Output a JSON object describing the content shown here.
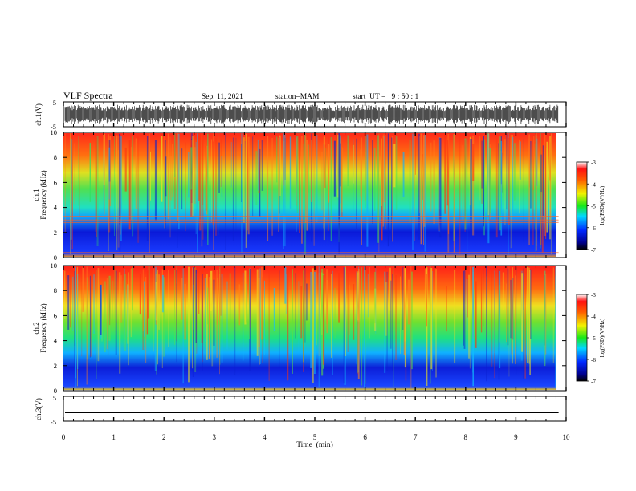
{
  "header": {
    "title": "VLF Spectra",
    "date": "Sep. 11, 2021",
    "station": "station=MAM",
    "start": "start  UT =   9 : 50 : 1"
  },
  "chart_data": [
    {
      "type": "line",
      "panel": "ch1-waveform",
      "ylabel": "ch.1(V)",
      "ylim": [
        -5,
        5
      ],
      "yticks": [
        5,
        -5
      ],
      "xlim": [
        0,
        10
      ],
      "trace": "noisy waveform spanning approx -4 to 4 V",
      "color": "#000000"
    },
    {
      "type": "heatmap",
      "panel": "ch1-spectrogram",
      "ylabel": "ch.1\nFrequency  (kHz)",
      "ylim": [
        0,
        10
      ],
      "yticks": [
        0,
        2,
        4,
        6,
        8,
        10
      ],
      "xlim": [
        0,
        9.85
      ],
      "colorbar": {
        "label": "log(PSD)(V²/Hz)",
        "ticks": [
          -3,
          -4,
          -5,
          -6,
          -7
        ],
        "range": [
          -7,
          -3
        ]
      },
      "bands": [
        {
          "f": [
            0,
            3.3
          ],
          "level": -6.1
        },
        {
          "f": [
            3.3,
            5.5
          ],
          "level": -5.0
        },
        {
          "f": [
            5.5,
            8.0
          ],
          "level": -4.5
        },
        {
          "f": [
            8.0,
            10
          ],
          "level": -3.8
        }
      ],
      "lines_khz": [
        0.4,
        2.8,
        3.0,
        3.3
      ]
    },
    {
      "type": "heatmap",
      "panel": "ch2-spectrogram",
      "ylabel": "ch.2\nFrequency  (kHz)",
      "ylim": [
        0,
        10
      ],
      "yticks": [
        0,
        2,
        4,
        6,
        8,
        10
      ],
      "xlim": [
        0,
        9.85
      ],
      "colorbar": {
        "label": "log(PSD)(V²/Hz)",
        "ticks": [
          -3,
          -4,
          -5,
          -6,
          -7
        ],
        "range": [
          -7,
          -3
        ]
      },
      "bands": [
        {
          "f": [
            0,
            3.5
          ],
          "level": -6.0
        },
        {
          "f": [
            3.5,
            6.0
          ],
          "level": -5.1
        },
        {
          "f": [
            6.0,
            8.0
          ],
          "level": -4.4
        },
        {
          "f": [
            8.0,
            10
          ],
          "level": -3.7
        }
      ]
    },
    {
      "type": "line",
      "panel": "ch3-waveform",
      "ylabel": "ch.3(V)",
      "ylim": [
        -5,
        5
      ],
      "yticks": [
        5,
        -5
      ],
      "xlim": [
        0,
        10
      ],
      "trace": "flat line at approx -1.7 V",
      "level": -1.7,
      "color": "#000000"
    }
  ],
  "xaxis": {
    "label": "Time  (min)",
    "ticks": [
      0,
      1,
      2,
      3,
      4,
      5,
      6,
      7,
      8,
      9,
      10
    ],
    "range": [
      0,
      10
    ]
  },
  "colors": {
    "axis": "#000000",
    "background": "#ffffff"
  }
}
